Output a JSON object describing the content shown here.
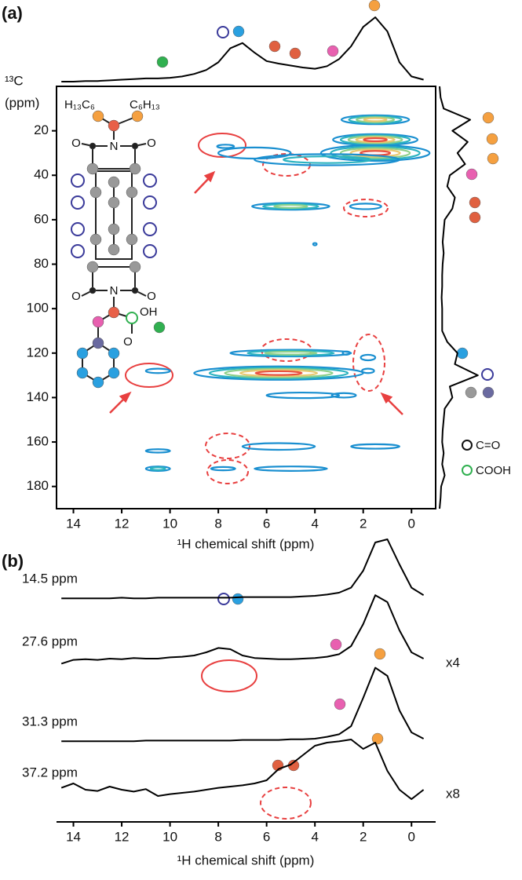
{
  "chart_data": [
    {
      "type": "contour",
      "panel_label": "(a)",
      "y_title": [
        "¹³C",
        "(ppm)"
      ],
      "x_title": "¹H chemical shift (ppm)",
      "xlim": [
        14.7,
        -1
      ],
      "ylim": [
        0,
        190
      ],
      "xticks": [
        14,
        12,
        10,
        8,
        6,
        4,
        2,
        0
      ],
      "yticks": [
        20,
        40,
        60,
        80,
        100,
        120,
        140,
        160,
        180
      ],
      "contour_colors": [
        "#1a8fd0",
        "#2bb3c0",
        "#8fd08a",
        "#e8c870",
        "#e85040"
      ],
      "peaks": {
        "x": [
          1.5,
          1.5,
          1.5,
          3.5,
          5.0,
          1.9,
          7.7,
          6.5,
          5.0,
          5.5,
          10.5,
          1.8,
          1.8,
          4.5,
          2.8,
          5.5,
          1.5,
          10.5,
          10.5,
          7.8,
          5.0,
          4.0,
          2.7
        ],
        "y": [
          15,
          24,
          30,
          33,
          54,
          54,
          27,
          30,
          120,
          129,
          128,
          122,
          128,
          139,
          139,
          162,
          162,
          164,
          172,
          172,
          172,
          71,
          120
        ],
        "x_width": [
          2.8,
          3.5,
          4.5,
          6,
          3.2,
          1.3,
          0.7,
          3,
          5,
          7,
          1.0,
          0.6,
          0.5,
          3,
          1,
          3,
          2,
          1,
          1,
          1,
          3,
          0.15,
          0.3
        ],
        "y_width": [
          4,
          5,
          7,
          5,
          3,
          2.5,
          1.5,
          5,
          3,
          6,
          2,
          2.5,
          2,
          2.5,
          2,
          3,
          2,
          1.5,
          2,
          1.5,
          2,
          1,
          1.5
        ],
        "levels": [
          4,
          5,
          5,
          2,
          3,
          1,
          1,
          1,
          3,
          5,
          1,
          1,
          1,
          1,
          1,
          1,
          1,
          1,
          2,
          1,
          1,
          1,
          1
        ]
      },
      "projection_1h": {
        "color": "#000000",
        "x": [
          14.5,
          14,
          13.5,
          13,
          12.5,
          12,
          11.5,
          11,
          10.5,
          10,
          9.5,
          9,
          8.5,
          8,
          7.5,
          7,
          6.5,
          6,
          5.5,
          5,
          4.5,
          4,
          3.5,
          3,
          2.5,
          2,
          1.5,
          1,
          0.5,
          0,
          -0.5
        ],
        "values": [
          0,
          0,
          1,
          1,
          2,
          3,
          4,
          5,
          5,
          6,
          8,
          12,
          18,
          30,
          52,
          60,
          45,
          32,
          28,
          25,
          22,
          20,
          24,
          35,
          55,
          85,
          100,
          78,
          30,
          8,
          3
        ]
      },
      "projection_13c": {
        "color": "#000000",
        "y": [
          0,
          5,
          10,
          15,
          20,
          25,
          30,
          35,
          40,
          45,
          50,
          55,
          60,
          65,
          70,
          75,
          80,
          85,
          90,
          95,
          100,
          105,
          110,
          115,
          120,
          125,
          130,
          135,
          140,
          145,
          150,
          155,
          160,
          165,
          170,
          175,
          180,
          185,
          190
        ],
        "values": [
          0,
          2,
          8,
          60,
          25,
          55,
          35,
          50,
          20,
          15,
          30,
          25,
          10,
          8,
          6,
          8,
          6,
          5,
          5,
          4,
          5,
          5,
          5,
          15,
          35,
          30,
          75,
          20,
          25,
          10,
          8,
          6,
          5,
          8,
          5,
          10,
          3,
          2,
          0
        ]
      },
      "molecule_labels": [
        "H₁₃C₆",
        "C₆H₁₃",
        "N",
        "O",
        "O",
        "N",
        "O",
        "O",
        "OH",
        "O"
      ],
      "legend": [
        "C=O",
        "COOH"
      ]
    },
    {
      "type": "line",
      "panel_label": "(b)",
      "x_title": "¹H chemical shift (ppm)",
      "xlim": [
        14.7,
        -1
      ],
      "xticks": [
        14,
        12,
        10,
        8,
        6,
        4,
        2,
        0
      ],
      "x": [
        14.5,
        14,
        13.5,
        13,
        12.5,
        12,
        11.5,
        11,
        10.5,
        10,
        9.5,
        9,
        8.5,
        8,
        7.5,
        7,
        6.5,
        6,
        5.5,
        5,
        4.5,
        4,
        3.5,
        3,
        2.5,
        2,
        1.5,
        1,
        0.5,
        0,
        -0.5
      ],
      "series": [
        {
          "name": "14.5 ppm",
          "color": "#000000",
          "values": [
            1,
            1,
            1,
            1,
            1,
            2,
            1,
            1,
            2,
            2,
            2,
            2,
            2,
            2,
            2,
            3,
            3,
            3,
            3,
            3,
            4,
            5,
            7,
            10,
            18,
            45,
            90,
            95,
            55,
            18,
            6
          ]
        },
        {
          "name": "27.6 ppm",
          "color": "#000000",
          "multiplier": "x4",
          "values": [
            -3,
            3,
            4,
            3,
            5,
            4,
            6,
            5,
            5,
            7,
            8,
            10,
            15,
            22,
            20,
            10,
            6,
            5,
            4,
            4,
            5,
            6,
            8,
            12,
            25,
            60,
            106,
            95,
            50,
            15,
            5
          ]
        },
        {
          "name": "31.3 ppm",
          "color": "#000000",
          "values": [
            1,
            1,
            1,
            1,
            1,
            1,
            1,
            2,
            2,
            2,
            2,
            2,
            2,
            2,
            2,
            3,
            3,
            3,
            3,
            4,
            4,
            5,
            8,
            12,
            25,
            70,
            118,
            105,
            50,
            15,
            5
          ]
        },
        {
          "name": "37.2 ppm",
          "color": "#000000",
          "multiplier": "x8",
          "values": [
            8,
            15,
            5,
            3,
            10,
            5,
            2,
            6,
            -5,
            -2,
            0,
            2,
            5,
            8,
            10,
            12,
            15,
            20,
            38,
            45,
            60,
            75,
            80,
            82,
            85,
            70,
            80,
            35,
            5,
            -10,
            5
          ]
        }
      ]
    }
  ]
}
